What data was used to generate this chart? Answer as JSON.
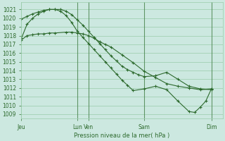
{
  "title": "Pression niveau de la mer( hPa )",
  "ylim": [
    1008.5,
    1021.8
  ],
  "yticks": [
    1009,
    1010,
    1011,
    1012,
    1013,
    1014,
    1015,
    1016,
    1017,
    1018,
    1019,
    1020,
    1021
  ],
  "bg_color": "#cce8e0",
  "line_color": "#2d6a2d",
  "grid_color": "#99ccaa",
  "xlabel": "Pression niveau de la mer( hPa )",
  "xtick_labels": [
    "Jeu",
    "Lun",
    "Ven",
    "Sam",
    "Dim"
  ],
  "xtick_x": [
    0.0,
    5.0,
    6.0,
    11.0,
    17.0
  ],
  "vlines": [
    5.0,
    6.0,
    11.0,
    17.0
  ],
  "xlim": [
    0.0,
    18.0
  ],
  "line1_x": [
    0.0,
    0.5,
    1.0,
    1.5,
    2.0,
    2.5,
    3.0,
    4.0,
    4.5,
    5.0,
    5.5,
    6.0,
    6.5,
    7.0,
    7.5,
    8.0,
    9.0,
    10.0,
    11.0,
    12.0,
    13.0,
    14.0,
    15.0,
    16.0,
    17.0
  ],
  "line1_y": [
    1017.5,
    1018.0,
    1018.1,
    1018.2,
    1018.2,
    1018.3,
    1018.3,
    1018.4,
    1018.4,
    1018.3,
    1018.2,
    1018.0,
    1017.7,
    1017.3,
    1017.0,
    1016.7,
    1015.8,
    1014.9,
    1013.9,
    1013.2,
    1012.5,
    1012.2,
    1012.0,
    1011.8,
    1011.9
  ],
  "line2_x": [
    0.0,
    0.5,
    1.0,
    1.5,
    2.0,
    2.5,
    3.0,
    3.5,
    4.0,
    4.5,
    5.0,
    5.5,
    6.0,
    6.5,
    7.0,
    7.5,
    8.0,
    8.5,
    9.0,
    9.5,
    10.0,
    10.5,
    11.0,
    12.0,
    13.0,
    14.0,
    15.0,
    16.0,
    17.0
  ],
  "line2_y": [
    1019.9,
    1020.2,
    1020.5,
    1020.7,
    1020.9,
    1021.0,
    1021.0,
    1021.0,
    1020.8,
    1020.4,
    1019.8,
    1019.2,
    1018.5,
    1017.8,
    1017.1,
    1016.4,
    1015.7,
    1015.1,
    1014.5,
    1014.1,
    1013.8,
    1013.5,
    1013.3,
    1013.4,
    1013.8,
    1013.0,
    1012.2,
    1011.9,
    1011.8
  ],
  "line3_x": [
    0.0,
    0.5,
    1.0,
    1.5,
    2.0,
    2.5,
    3.0,
    3.5,
    4.0,
    4.5,
    5.0,
    5.5,
    6.0,
    6.5,
    7.0,
    7.5,
    8.0,
    8.5,
    9.0,
    9.5,
    10.0,
    11.0,
    12.0,
    13.0,
    14.0,
    15.0,
    15.5,
    16.0,
    16.5,
    17.0
  ],
  "line3_y": [
    1017.7,
    1019.3,
    1020.0,
    1020.5,
    1020.8,
    1021.0,
    1021.0,
    1020.8,
    1020.3,
    1019.5,
    1018.5,
    1017.8,
    1017.1,
    1016.4,
    1015.7,
    1015.0,
    1014.3,
    1013.6,
    1012.9,
    1012.3,
    1011.7,
    1011.9,
    1012.2,
    1011.8,
    1010.5,
    1009.3,
    1009.2,
    1009.8,
    1010.5,
    1011.9
  ]
}
